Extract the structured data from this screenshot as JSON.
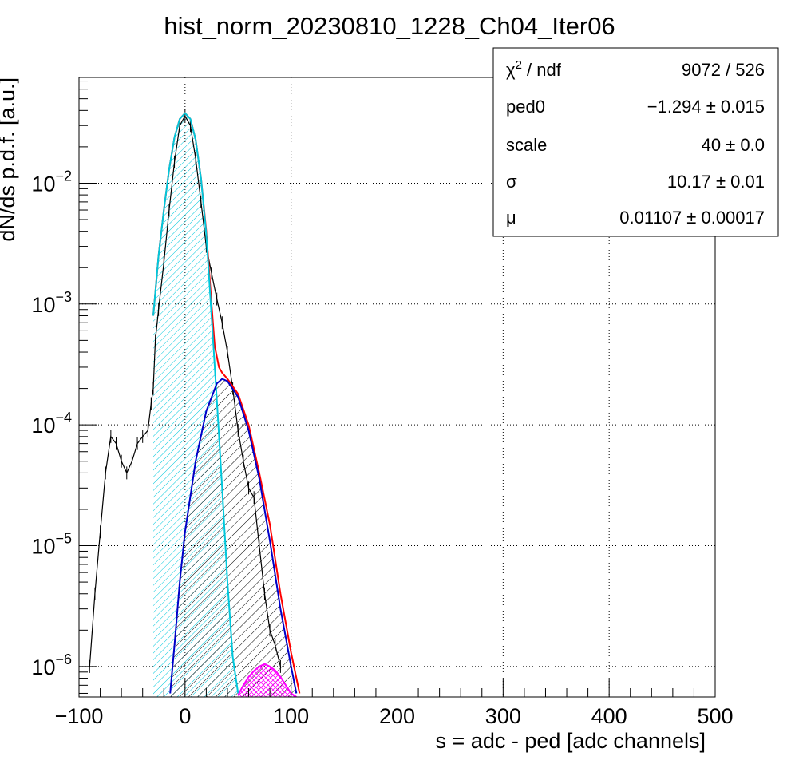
{
  "chart_data": {
    "type": "line",
    "title": "hist_norm_20230810_1228_Ch04_Iter06",
    "xlabel": "s = adc - ped [adc channels]",
    "ylabel": "dN/ds p.d.f. [a.u.]",
    "xlim": [
      -100,
      500
    ],
    "ylim": [
      5.6e-07,
      0.075
    ],
    "yscale": "log",
    "grid": true,
    "xticks": [
      "−100",
      "0",
      "100",
      "200",
      "300",
      "400",
      "500"
    ],
    "xtick_values": [
      -100,
      0,
      100,
      200,
      300,
      400,
      500
    ],
    "yticks": [
      {
        "value": 1e-06,
        "base": "10",
        "exp": "−6"
      },
      {
        "value": 1e-05,
        "base": "10",
        "exp": "−5"
      },
      {
        "value": 0.0001,
        "base": "10",
        "exp": "−4"
      },
      {
        "value": 0.001,
        "base": "10",
        "exp": "−3"
      },
      {
        "value": 0.01,
        "base": "10",
        "exp": "−2"
      }
    ],
    "series": [
      {
        "role": "data",
        "color": "#000000",
        "x": [
          -90,
          -85,
          -80,
          -75,
          -70,
          -65,
          -60,
          -55,
          -50,
          -45,
          -40,
          -35,
          -32,
          -30,
          -28,
          -25,
          -20,
          -15,
          -10,
          -5,
          0,
          5,
          10,
          15,
          20,
          25,
          30,
          35,
          40,
          45,
          50,
          55,
          60,
          65,
          70,
          75,
          80,
          85,
          90
        ],
        "y": [
          1e-06,
          4e-06,
          1.3e-05,
          4e-05,
          8e-05,
          7e-05,
          5e-05,
          4e-05,
          5e-05,
          7e-05,
          8e-05,
          9e-05,
          0.00015,
          0.0002,
          0.0005,
          0.0009,
          0.0022,
          0.006,
          0.015,
          0.03,
          0.036,
          0.03,
          0.016,
          0.007,
          0.003,
          0.0018,
          0.0011,
          0.0007,
          0.0004,
          0.0002,
          9e-05,
          5e-05,
          3e-05,
          2.5e-05,
          1e-05,
          4e-06,
          2e-06,
          1.5e-06,
          1e-06
        ]
      },
      {
        "role": "fit-total",
        "color": "#ff0000",
        "x": [
          -30,
          -25,
          -20,
          -15,
          -10,
          -5,
          0,
          5,
          10,
          15,
          20,
          25,
          28,
          32,
          35,
          40,
          50,
          60,
          70,
          80,
          90,
          100,
          108
        ],
        "y": [
          0.0008,
          0.0025,
          0.006,
          0.013,
          0.024,
          0.034,
          0.038,
          0.034,
          0.023,
          0.011,
          0.004,
          0.001,
          0.00045,
          0.0003,
          0.00027,
          0.00024,
          0.00018,
          0.0001,
          4e-05,
          1.5e-05,
          4e-06,
          1.3e-06,
          6e-07
        ]
      },
      {
        "role": "pedestal-component",
        "color": "#00c8dc",
        "fill": "hatch",
        "x": [
          -30,
          -25,
          -20,
          -15,
          -10,
          -5,
          0,
          5,
          10,
          15,
          20,
          25,
          30,
          35,
          40,
          45,
          50
        ],
        "y": [
          0.0008,
          0.0025,
          0.006,
          0.013,
          0.024,
          0.034,
          0.038,
          0.034,
          0.023,
          0.011,
          0.0038,
          0.0008,
          0.00016,
          3e-05,
          5e-06,
          1.2e-06,
          6e-07
        ]
      },
      {
        "role": "single-pe-component",
        "color": "#0000c8",
        "fill": "hatch",
        "x": [
          -14,
          -10,
          -5,
          0,
          10,
          20,
          30,
          35,
          40,
          50,
          60,
          70,
          80,
          90,
          100,
          105
        ],
        "y": [
          6e-07,
          1.5e-06,
          5e-06,
          1.3e-05,
          5e-05,
          0.00013,
          0.00022,
          0.00024,
          0.00023,
          0.00017,
          9e-05,
          3.6e-05,
          1.1e-05,
          3e-06,
          1e-06,
          6e-07
        ]
      },
      {
        "role": "double-pe-component",
        "color": "#ff00ff",
        "fill": "hatch",
        "x": [
          50,
          55,
          60,
          65,
          70,
          75,
          80,
          85,
          90,
          95,
          100,
          105
        ],
        "y": [
          5.8e-07,
          7e-07,
          8.2e-07,
          9.2e-07,
          1e-06,
          1.05e-06,
          1e-06,
          9.3e-07,
          8.2e-07,
          7e-07,
          6e-07,
          5.6e-07
        ]
      }
    ]
  },
  "stats": {
    "rows": [
      {
        "label_main": "χ",
        "label_sup": "2",
        "label_rest": " / ndf",
        "value": "9072 / 526"
      },
      {
        "label_main": "ped0",
        "label_sup": "",
        "label_rest": "",
        "value": "−1.294 ± 0.015"
      },
      {
        "label_main": "scale",
        "label_sup": "",
        "label_rest": "",
        "value": "40 ± 0.0"
      },
      {
        "label_main": "σ",
        "label_sup": "",
        "label_rest": "",
        "value": "10.17 ± 0.01"
      },
      {
        "label_main": "μ",
        "label_sup": "",
        "label_rest": "",
        "value": "0.01107 ± 0.00017"
      }
    ]
  }
}
